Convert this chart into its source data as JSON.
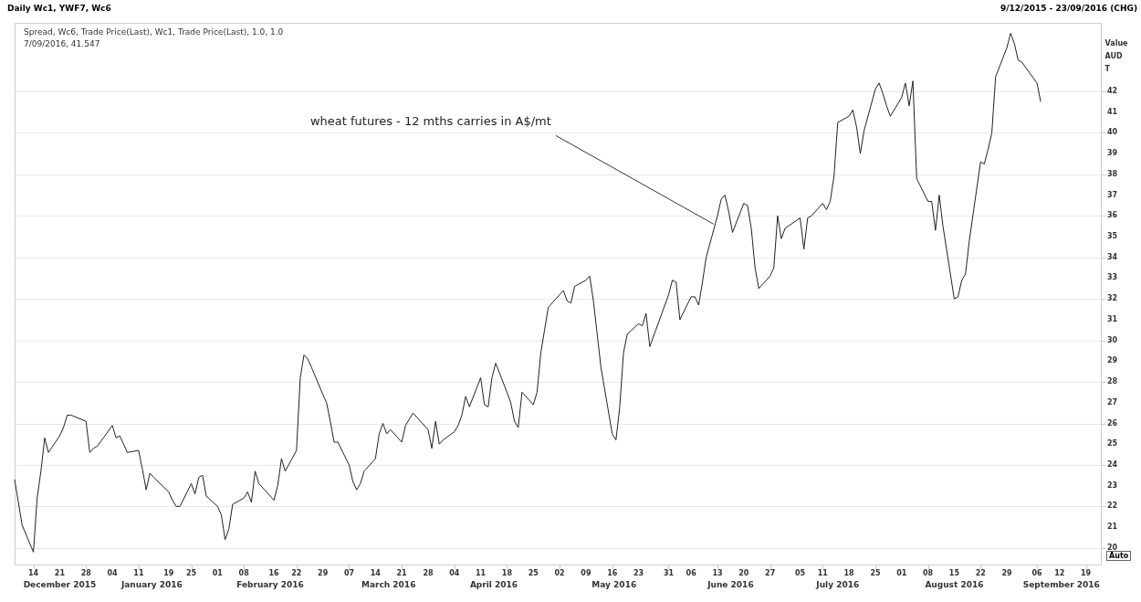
{
  "chart_data": {
    "type": "line",
    "title": "Daily Wc1, YWF7, Wc6",
    "subtitle": "9/12/2015 - 23/09/2016 (CHG)",
    "ylabel": "Value\nAUD\nT",
    "x": [
      "2015-12-09",
      "2015-12-10",
      "2015-12-11",
      "2015-12-14",
      "2015-12-15",
      "2015-12-16",
      "2015-12-17",
      "2015-12-18",
      "2015-12-21",
      "2015-12-22",
      "2015-12-23",
      "2015-12-24",
      "2015-12-28",
      "2015-12-29",
      "2015-12-30",
      "2015-12-31",
      "2016-01-04",
      "2016-01-05",
      "2016-01-06",
      "2016-01-07",
      "2016-01-08",
      "2016-01-11",
      "2016-01-12",
      "2016-01-13",
      "2016-01-14",
      "2016-01-15",
      "2016-01-19",
      "2016-01-20",
      "2016-01-21",
      "2016-01-22",
      "2016-01-25",
      "2016-01-26",
      "2016-01-27",
      "2016-01-28",
      "2016-01-29",
      "2016-02-01",
      "2016-02-02",
      "2016-02-03",
      "2016-02-04",
      "2016-02-05",
      "2016-02-08",
      "2016-02-09",
      "2016-02-10",
      "2016-02-11",
      "2016-02-12",
      "2016-02-16",
      "2016-02-17",
      "2016-02-18",
      "2016-02-19",
      "2016-02-22",
      "2016-02-23",
      "2016-02-24",
      "2016-02-25",
      "2016-02-26",
      "2016-02-29",
      "2016-03-01",
      "2016-03-02",
      "2016-03-03",
      "2016-03-04",
      "2016-03-07",
      "2016-03-08",
      "2016-03-09",
      "2016-03-10",
      "2016-03-11",
      "2016-03-14",
      "2016-03-15",
      "2016-03-16",
      "2016-03-17",
      "2016-03-18",
      "2016-03-21",
      "2016-03-22",
      "2016-03-23",
      "2016-03-24",
      "2016-03-28",
      "2016-03-29",
      "2016-03-30",
      "2016-03-31",
      "2016-04-01",
      "2016-04-04",
      "2016-04-05",
      "2016-04-06",
      "2016-04-07",
      "2016-04-08",
      "2016-04-11",
      "2016-04-12",
      "2016-04-13",
      "2016-04-14",
      "2016-04-15",
      "2016-04-18",
      "2016-04-19",
      "2016-04-20",
      "2016-04-21",
      "2016-04-22",
      "2016-04-25",
      "2016-04-26",
      "2016-04-27",
      "2016-04-28",
      "2016-04-29",
      "2016-05-02",
      "2016-05-03",
      "2016-05-04",
      "2016-05-05",
      "2016-05-06",
      "2016-05-09",
      "2016-05-10",
      "2016-05-11",
      "2016-05-12",
      "2016-05-13",
      "2016-05-16",
      "2016-05-17",
      "2016-05-18",
      "2016-05-19",
      "2016-05-20",
      "2016-05-23",
      "2016-05-24",
      "2016-05-25",
      "2016-05-26",
      "2016-05-27",
      "2016-05-31",
      "2016-06-01",
      "2016-06-02",
      "2016-06-03",
      "2016-06-06",
      "2016-06-07",
      "2016-06-08",
      "2016-06-09",
      "2016-06-10",
      "2016-06-13",
      "2016-06-14",
      "2016-06-15",
      "2016-06-16",
      "2016-06-17",
      "2016-06-20",
      "2016-06-21",
      "2016-06-22",
      "2016-06-23",
      "2016-06-24",
      "2016-06-27",
      "2016-06-28",
      "2016-06-29",
      "2016-06-30",
      "2016-07-01",
      "2016-07-05",
      "2016-07-06",
      "2016-07-07",
      "2016-07-08",
      "2016-07-11",
      "2016-07-12",
      "2016-07-13",
      "2016-07-14",
      "2016-07-15",
      "2016-07-18",
      "2016-07-19",
      "2016-07-20",
      "2016-07-21",
      "2016-07-22",
      "2016-07-25",
      "2016-07-26",
      "2016-07-27",
      "2016-07-28",
      "2016-07-29",
      "2016-08-01",
      "2016-08-02",
      "2016-08-03",
      "2016-08-04",
      "2016-08-05",
      "2016-08-08",
      "2016-08-09",
      "2016-08-10",
      "2016-08-11",
      "2016-08-12",
      "2016-08-15",
      "2016-08-16",
      "2016-08-17",
      "2016-08-18",
      "2016-08-19",
      "2016-08-22",
      "2016-08-23",
      "2016-08-24",
      "2016-08-25",
      "2016-08-26",
      "2016-08-29",
      "2016-08-30",
      "2016-08-31",
      "2016-09-01",
      "2016-09-02",
      "2016-09-06",
      "2016-09-07"
    ],
    "values": [
      23.3,
      22.2,
      21.1,
      19.8,
      22.4,
      23.7,
      25.3,
      24.6,
      25.4,
      25.8,
      26.4,
      26.4,
      26.1,
      24.6,
      24.8,
      24.9,
      25.9,
      25.3,
      25.4,
      25.0,
      24.6,
      24.7,
      23.8,
      22.8,
      23.6,
      23.4,
      22.7,
      22.3,
      22.0,
      22.0,
      23.1,
      22.6,
      23.4,
      23.5,
      22.5,
      22.0,
      21.6,
      20.4,
      20.9,
      22.1,
      22.4,
      22.7,
      22.2,
      23.7,
      23.1,
      22.3,
      23.0,
      24.3,
      23.7,
      24.7,
      28.2,
      29.3,
      29.1,
      28.7,
      27.4,
      27.0,
      26.1,
      25.1,
      25.1,
      24.0,
      23.2,
      22.8,
      23.1,
      23.7,
      24.3,
      25.5,
      26.0,
      25.5,
      25.7,
      25.1,
      25.9,
      26.2,
      26.5,
      25.7,
      24.8,
      26.1,
      25.0,
      25.2,
      25.6,
      25.9,
      26.4,
      27.3,
      26.8,
      28.2,
      26.9,
      26.8,
      28.2,
      28.9,
      27.5,
      27.0,
      26.1,
      25.8,
      27.5,
      26.9,
      27.5,
      29.4,
      30.5,
      31.6,
      32.2,
      32.4,
      31.9,
      31.8,
      32.6,
      32.9,
      33.1,
      31.9,
      30.3,
      28.7,
      25.5,
      25.2,
      26.8,
      29.4,
      30.3,
      30.8,
      30.7,
      31.3,
      29.7,
      30.2,
      32.2,
      32.9,
      32.8,
      31.0,
      32.1,
      32.1,
      31.7,
      32.8,
      34.0,
      36.0,
      36.8,
      37.0,
      36.2,
      35.2,
      36.6,
      36.5,
      35.4,
      33.5,
      32.5,
      33.1,
      33.5,
      36.0,
      34.9,
      35.4,
      35.9,
      34.4,
      35.9,
      36.0,
      36.6,
      36.3,
      36.7,
      37.9,
      40.5,
      40.8,
      41.1,
      40.3,
      39.0,
      40.1,
      42.1,
      42.4,
      41.9,
      41.3,
      40.8,
      41.7,
      42.4,
      41.3,
      42.5,
      37.8,
      36.7,
      36.7,
      35.3,
      37.0,
      35.5,
      32.0,
      32.1,
      32.9,
      33.2,
      34.8,
      38.6,
      38.5,
      39.2,
      40.0,
      42.7,
      44.1,
      44.8,
      44.3,
      43.5,
      43.4,
      42.4,
      41.5
    ],
    "color": "#222222",
    "xlim": [
      "2015-12-09",
      "2016-09-23"
    ],
    "xticks": [
      {
        "value": "2015-12-14",
        "label": "14"
      },
      {
        "value": "2015-12-21",
        "label": "21"
      },
      {
        "value": "2015-12-28",
        "label": "28"
      },
      {
        "value": "2016-01-04",
        "label": "04"
      },
      {
        "value": "2016-01-11",
        "label": "11"
      },
      {
        "value": "2016-01-19",
        "label": "19"
      },
      {
        "value": "2016-01-25",
        "label": "25"
      },
      {
        "value": "2016-02-01",
        "label": "01"
      },
      {
        "value": "2016-02-08",
        "label": "08"
      },
      {
        "value": "2016-02-16",
        "label": "16"
      },
      {
        "value": "2016-02-22",
        "label": "22"
      },
      {
        "value": "2016-02-29",
        "label": "29"
      },
      {
        "value": "2016-03-07",
        "label": "07"
      },
      {
        "value": "2016-03-14",
        "label": "14"
      },
      {
        "value": "2016-03-21",
        "label": "21"
      },
      {
        "value": "2016-03-28",
        "label": "28"
      },
      {
        "value": "2016-04-04",
        "label": "04"
      },
      {
        "value": "2016-04-11",
        "label": "11"
      },
      {
        "value": "2016-04-18",
        "label": "18"
      },
      {
        "value": "2016-04-25",
        "label": "25"
      },
      {
        "value": "2016-05-02",
        "label": "02"
      },
      {
        "value": "2016-05-09",
        "label": "09"
      },
      {
        "value": "2016-05-16",
        "label": "16"
      },
      {
        "value": "2016-05-23",
        "label": "23"
      },
      {
        "value": "2016-05-31",
        "label": "31"
      },
      {
        "value": "2016-06-06",
        "label": "06"
      },
      {
        "value": "2016-06-13",
        "label": "13"
      },
      {
        "value": "2016-06-20",
        "label": "20"
      },
      {
        "value": "2016-06-27",
        "label": "27"
      },
      {
        "value": "2016-07-05",
        "label": "05"
      },
      {
        "value": "2016-07-11",
        "label": "11"
      },
      {
        "value": "2016-07-18",
        "label": "18"
      },
      {
        "value": "2016-07-25",
        "label": "25"
      },
      {
        "value": "2016-08-01",
        "label": "01"
      },
      {
        "value": "2016-08-08",
        "label": "08"
      },
      {
        "value": "2016-08-15",
        "label": "15"
      },
      {
        "value": "2016-08-22",
        "label": "22"
      },
      {
        "value": "2016-08-29",
        "label": "29"
      },
      {
        "value": "2016-09-06",
        "label": "06"
      },
      {
        "value": "2016-09-12",
        "label": "12"
      },
      {
        "value": "2016-09-19",
        "label": "19"
      }
    ],
    "ylim": [
      19.2,
      45.3
    ],
    "yticks": [
      20,
      21,
      22,
      23,
      24,
      25,
      26,
      27,
      28,
      29,
      30,
      31,
      32,
      33,
      34,
      35,
      36,
      37,
      38,
      39,
      40,
      41,
      42
    ],
    "grid": "y",
    "annotations": [
      "Spread, Wc6, Trade Price(Last), Wc1, Trade Price(Last),  1.0, 1.0",
      "7/09/2016, 41.547",
      {
        "text": "wheat futures - 12 mths carries in A$/mt",
        "x": "2016-06-12",
        "y": 35.6
      },
      "December 2015",
      "January 2016",
      "February 2016",
      "March 2016",
      "April 2016",
      "May 2016",
      "June 2016",
      "July 2016",
      "August 2016",
      "September 2016",
      "Auto"
    ]
  }
}
